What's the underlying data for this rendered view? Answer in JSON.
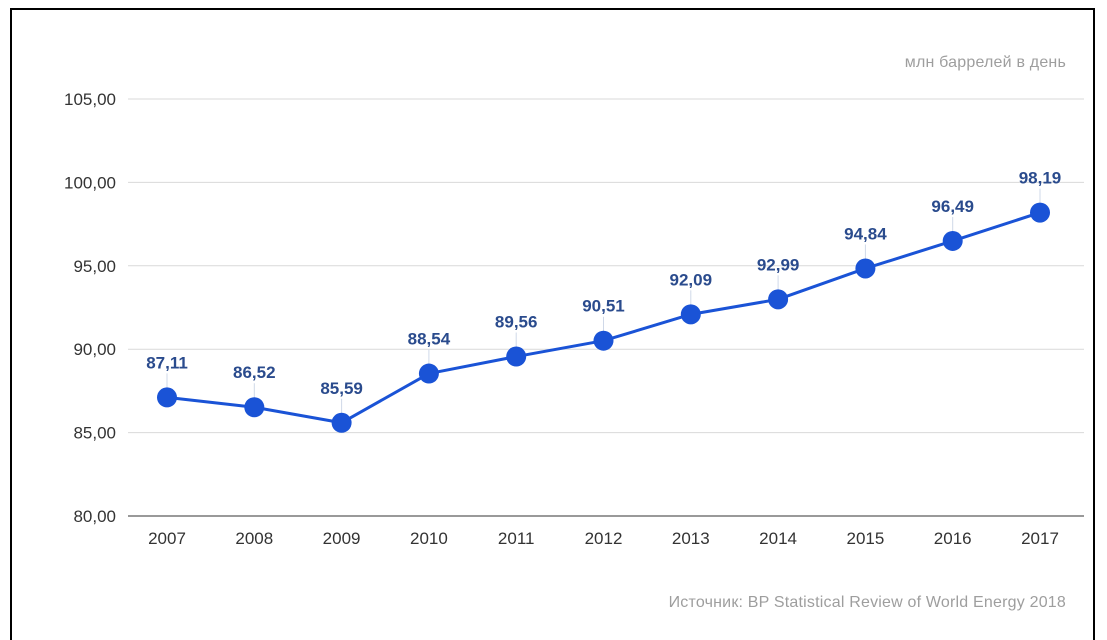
{
  "unit_label": "млн баррелей в день",
  "source_label": "Источник: BP Statistical Review of World Energy 2018",
  "colors": {
    "line": "#1a53d6",
    "marker": "#1a53d6",
    "data_label": "#2a4b8d",
    "grid": "#d9d9d9",
    "axis_text": "#333333",
    "note_text": "#9e9e9e"
  },
  "chart_data": {
    "type": "line",
    "title": "",
    "xlabel": "",
    "ylabel": "",
    "categories": [
      "2007",
      "2008",
      "2009",
      "2010",
      "2011",
      "2012",
      "2013",
      "2014",
      "2015",
      "2016",
      "2017"
    ],
    "values": [
      87.11,
      86.52,
      85.59,
      88.54,
      89.56,
      90.51,
      92.09,
      92.99,
      94.84,
      96.49,
      98.19
    ],
    "value_labels": [
      "87,11",
      "86,52",
      "85,59",
      "88,54",
      "89,56",
      "90,51",
      "92,09",
      "92,99",
      "94,84",
      "96,49",
      "98,19"
    ],
    "ylim": [
      80,
      105
    ],
    "y_ticks": [
      80,
      85,
      90,
      95,
      100,
      105
    ],
    "y_tick_labels": [
      "80,00",
      "85,00",
      "90,00",
      "95,00",
      "100,00",
      "105,00"
    ],
    "grid": true,
    "legend": "none"
  }
}
